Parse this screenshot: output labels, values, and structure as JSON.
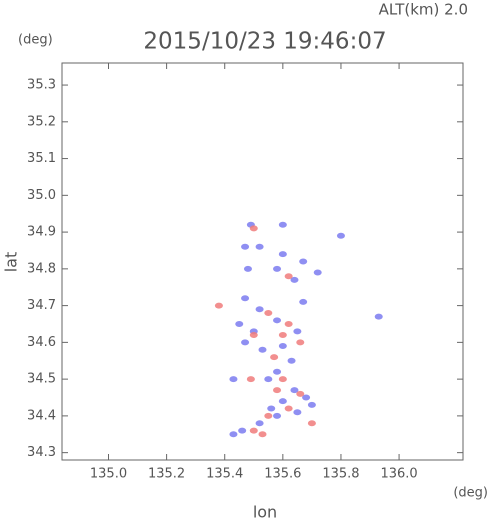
{
  "chart_data": {
    "type": "scatter",
    "title": "2015/10/23 19:46:07",
    "subtitle": "ALT(km) 2.0",
    "y_unit": "(deg)",
    "x_unit": "(deg)",
    "xlabel": "lon",
    "ylabel": "lat",
    "xlim": [
      134.84,
      136.22
    ],
    "ylim": [
      34.28,
      35.36
    ],
    "xticks": [
      {
        "value": 135,
        "label": "135.0"
      },
      135.2,
      135.4,
      135.6,
      135.8,
      {
        "value": 136,
        "label": "136.0"
      }
    ],
    "yticks": [
      34.3,
      34.4,
      34.5,
      34.6,
      34.7,
      34.8,
      34.9,
      {
        "value": 35,
        "label": "35.0"
      },
      35.1,
      35.2,
      35.3
    ],
    "series": [
      {
        "color": "#7b7bf0",
        "x": [
          135.49,
          135.6,
          135.47,
          135.52,
          135.48,
          135.6,
          135.67,
          135.72,
          135.64,
          135.58,
          135.8,
          135.93,
          135.45,
          135.5,
          135.58,
          135.65,
          135.6,
          135.53,
          135.47,
          135.63,
          135.58,
          135.55,
          135.64,
          135.68,
          135.6,
          135.56,
          135.65,
          135.7,
          135.58,
          135.52,
          135.46,
          135.43,
          135.67,
          135.52,
          135.43,
          135.47
        ],
        "values": [
          34.92,
          34.92,
          34.86,
          34.86,
          34.8,
          34.84,
          34.82,
          34.79,
          34.77,
          34.8,
          34.89,
          34.67,
          34.65,
          34.63,
          34.66,
          34.63,
          34.59,
          34.58,
          34.6,
          34.55,
          34.52,
          34.5,
          34.47,
          34.45,
          34.44,
          34.42,
          34.41,
          34.43,
          34.4,
          34.38,
          34.36,
          34.35,
          34.71,
          34.69,
          34.5,
          34.72
        ]
      },
      {
        "color": "#f07b7b",
        "x": [
          135.5,
          135.62,
          135.38,
          135.55,
          135.62,
          135.5,
          135.57,
          135.6,
          135.66,
          135.62,
          135.55,
          135.5,
          135.53,
          135.6,
          135.7,
          135.58,
          135.66,
          135.49
        ],
        "values": [
          34.91,
          34.78,
          34.7,
          34.68,
          34.65,
          34.62,
          34.56,
          34.5,
          34.46,
          34.42,
          34.4,
          34.36,
          34.35,
          34.62,
          34.38,
          34.47,
          34.6,
          34.5
        ]
      }
    ]
  }
}
